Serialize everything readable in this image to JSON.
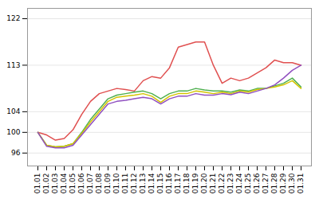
{
  "chart_data": {
    "type": "line",
    "categories": [
      "01.01",
      "01.02",
      "01.03",
      "01.04",
      "01.05",
      "01.06",
      "01.07",
      "01.08",
      "01.09",
      "01.10",
      "01.11",
      "01.12",
      "01.13",
      "01.14",
      "01.15",
      "01.16",
      "01.17",
      "01.18",
      "01.19",
      "01.20",
      "01.21",
      "01.22",
      "01.23",
      "01.24",
      "01.25",
      "01.26",
      "01.27",
      "01.28",
      "01.29",
      "01.30",
      "01.31"
    ],
    "series": [
      {
        "color": "#e05050",
        "values": [
          100,
          99.5,
          98.5,
          98.8,
          100.5,
          103.5,
          106.0,
          107.5,
          108.0,
          108.5,
          108.3,
          108.0,
          110.0,
          110.8,
          110.5,
          112.5,
          116.5,
          117.0,
          117.5,
          117.5,
          113.0,
          109.5,
          110.5,
          110.0,
          110.5,
          111.5,
          112.5,
          114.0,
          113.5,
          113.5,
          113.0
        ]
      },
      {
        "color": "#50b050",
        "values": [
          100,
          97.5,
          97.2,
          97.3,
          97.8,
          100.0,
          102.5,
          104.5,
          106.5,
          107.2,
          107.5,
          107.8,
          108.0,
          107.5,
          106.5,
          107.5,
          108.0,
          108.0,
          108.5,
          108.2,
          108.0,
          108.0,
          107.8,
          108.2,
          108.0,
          108.5,
          108.5,
          109.0,
          109.5,
          110.5,
          108.8
        ]
      },
      {
        "color": "#d4c400",
        "values": [
          100,
          97.5,
          97.2,
          97.3,
          97.8,
          99.8,
          102.0,
          104.0,
          106.0,
          106.8,
          107.0,
          107.2,
          107.5,
          107.0,
          105.8,
          107.0,
          107.5,
          107.5,
          108.0,
          107.8,
          107.5,
          107.8,
          107.5,
          108.0,
          107.8,
          108.3,
          108.5,
          108.8,
          109.2,
          110.0,
          108.5
        ]
      },
      {
        "color": "#9050c0",
        "values": [
          100,
          97.3,
          97.0,
          97.0,
          97.5,
          99.5,
          101.5,
          103.5,
          105.5,
          106.0,
          106.2,
          106.5,
          106.8,
          106.5,
          105.5,
          106.5,
          107.0,
          107.0,
          107.5,
          107.2,
          107.2,
          107.5,
          107.3,
          107.8,
          107.5,
          108.0,
          108.5,
          109.2,
          110.5,
          112.0,
          113.0
        ]
      }
    ],
    "ylim": [
      93.5,
      124
    ],
    "yticks": [
      96,
      100,
      104,
      113,
      122
    ],
    "grid": true
  }
}
